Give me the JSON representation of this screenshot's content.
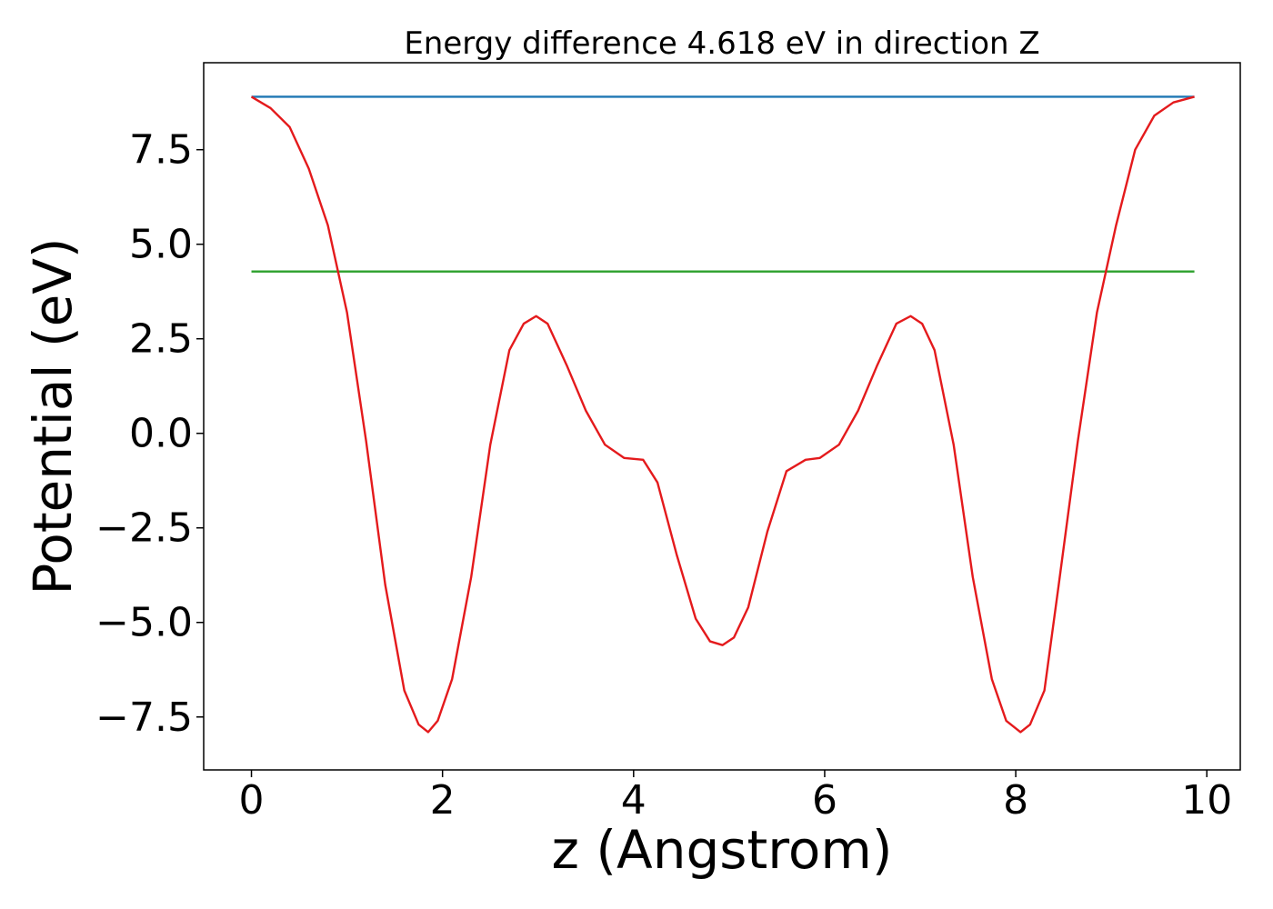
{
  "chart_data": {
    "type": "line",
    "title": "Energy difference 4.618 eV in direction Z",
    "xlabel": "z (Angstrom)",
    "ylabel": "Potential (eV)",
    "xlim": [
      -0.5,
      10.35
    ],
    "ylim": [
      -8.9,
      9.8
    ],
    "xticks": [
      0,
      2,
      4,
      6,
      8,
      10
    ],
    "xtick_labels": [
      "0",
      "2",
      "4",
      "6",
      "8",
      "10"
    ],
    "yticks": [
      -7.5,
      -5.0,
      -2.5,
      0.0,
      2.5,
      5.0,
      7.5
    ],
    "ytick_labels": [
      "−7.5",
      "−5.0",
      "−2.5",
      "0.0",
      "2.5",
      "5.0",
      "7.5"
    ],
    "grid": false,
    "legend": "none",
    "series": [
      {
        "color": "#1f77b4",
        "x": [
          0,
          9.87
        ],
        "y": [
          8.9,
          8.9
        ]
      },
      {
        "color": "#2ca02c",
        "x": [
          0,
          9.87
        ],
        "y": [
          4.28,
          4.28
        ]
      },
      {
        "color": "#e41a1c",
        "x": [
          0.0,
          0.2,
          0.4,
          0.6,
          0.8,
          1.0,
          1.2,
          1.4,
          1.6,
          1.75,
          1.85,
          1.95,
          2.1,
          2.3,
          2.5,
          2.7,
          2.85,
          2.98,
          3.1,
          3.3,
          3.5,
          3.7,
          3.9,
          4.1,
          4.25,
          4.45,
          4.65,
          4.8,
          4.93,
          5.05,
          5.2,
          5.4,
          5.6,
          5.8,
          5.95,
          6.15,
          6.35,
          6.55,
          6.75,
          6.9,
          7.02,
          7.15,
          7.35,
          7.55,
          7.75,
          7.9,
          8.05,
          8.15,
          8.3,
          8.45,
          8.65,
          8.85,
          9.05,
          9.25,
          9.45,
          9.65,
          9.87
        ],
        "y": [
          8.9,
          8.6,
          8.1,
          7.0,
          5.5,
          3.2,
          -0.2,
          -4.0,
          -6.8,
          -7.7,
          -7.9,
          -7.6,
          -6.5,
          -3.8,
          -0.3,
          2.2,
          2.9,
          3.1,
          2.9,
          1.8,
          0.6,
          -0.3,
          -0.65,
          -0.7,
          -1.3,
          -3.2,
          -4.9,
          -5.5,
          -5.6,
          -5.4,
          -4.6,
          -2.6,
          -1.0,
          -0.7,
          -0.65,
          -0.3,
          0.6,
          1.8,
          2.9,
          3.1,
          2.9,
          2.2,
          -0.3,
          -3.8,
          -6.5,
          -7.6,
          -7.9,
          -7.7,
          -6.8,
          -4.0,
          -0.2,
          3.2,
          5.5,
          7.5,
          8.4,
          8.75,
          8.9
        ]
      }
    ]
  }
}
